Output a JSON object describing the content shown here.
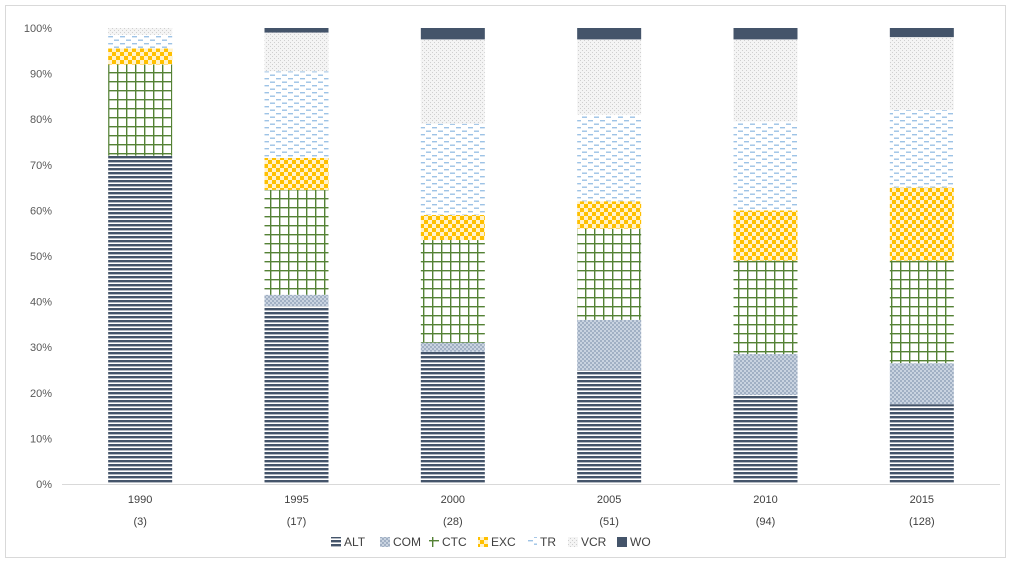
{
  "chart_data": {
    "type": "bar",
    "stacked": true,
    "percent": true,
    "categories": [
      "1990",
      "1995",
      "2000",
      "2005",
      "2010",
      "2015"
    ],
    "category_counts": [
      "(3)",
      "(17)",
      "(28)",
      "(51)",
      "(94)",
      "(128)"
    ],
    "ylim": [
      0,
      100
    ],
    "yticks": [
      "0%",
      "10%",
      "20%",
      "30%",
      "40%",
      "50%",
      "60%",
      "70%",
      "80%",
      "90%",
      "100%"
    ],
    "legend_position": "bottom",
    "grid": false,
    "series": [
      {
        "name": "ALT",
        "color": "#44546a",
        "pattern": "horizontal-lines",
        "values": [
          72,
          39,
          29,
          25,
          19.5,
          17.5
        ]
      },
      {
        "name": "COM",
        "color": "#a9b8cc",
        "pattern": "dots",
        "values": [
          0,
          2.5,
          2,
          11,
          9,
          9
        ]
      },
      {
        "name": "CTC",
        "color": "#548235",
        "pattern": "grid",
        "values": [
          20,
          23,
          22.5,
          20,
          20.5,
          22.5
        ]
      },
      {
        "name": "EXC",
        "color": "#ffc000",
        "pattern": "checker",
        "values": [
          3.5,
          7,
          5.5,
          6,
          11,
          16
        ]
      },
      {
        "name": "TR",
        "color": "#9dc3e6",
        "pattern": "dashes",
        "values": [
          3,
          19,
          20,
          19,
          19.5,
          17
        ]
      },
      {
        "name": "VCR",
        "color": "#d0d0d0",
        "pattern": "speckle",
        "values": [
          1.5,
          8.5,
          18.5,
          16.5,
          18,
          16
        ]
      },
      {
        "name": "WO",
        "color": "#44546a",
        "pattern": "solid",
        "values": [
          0,
          1,
          2.5,
          2.5,
          2.5,
          2
        ]
      }
    ]
  }
}
